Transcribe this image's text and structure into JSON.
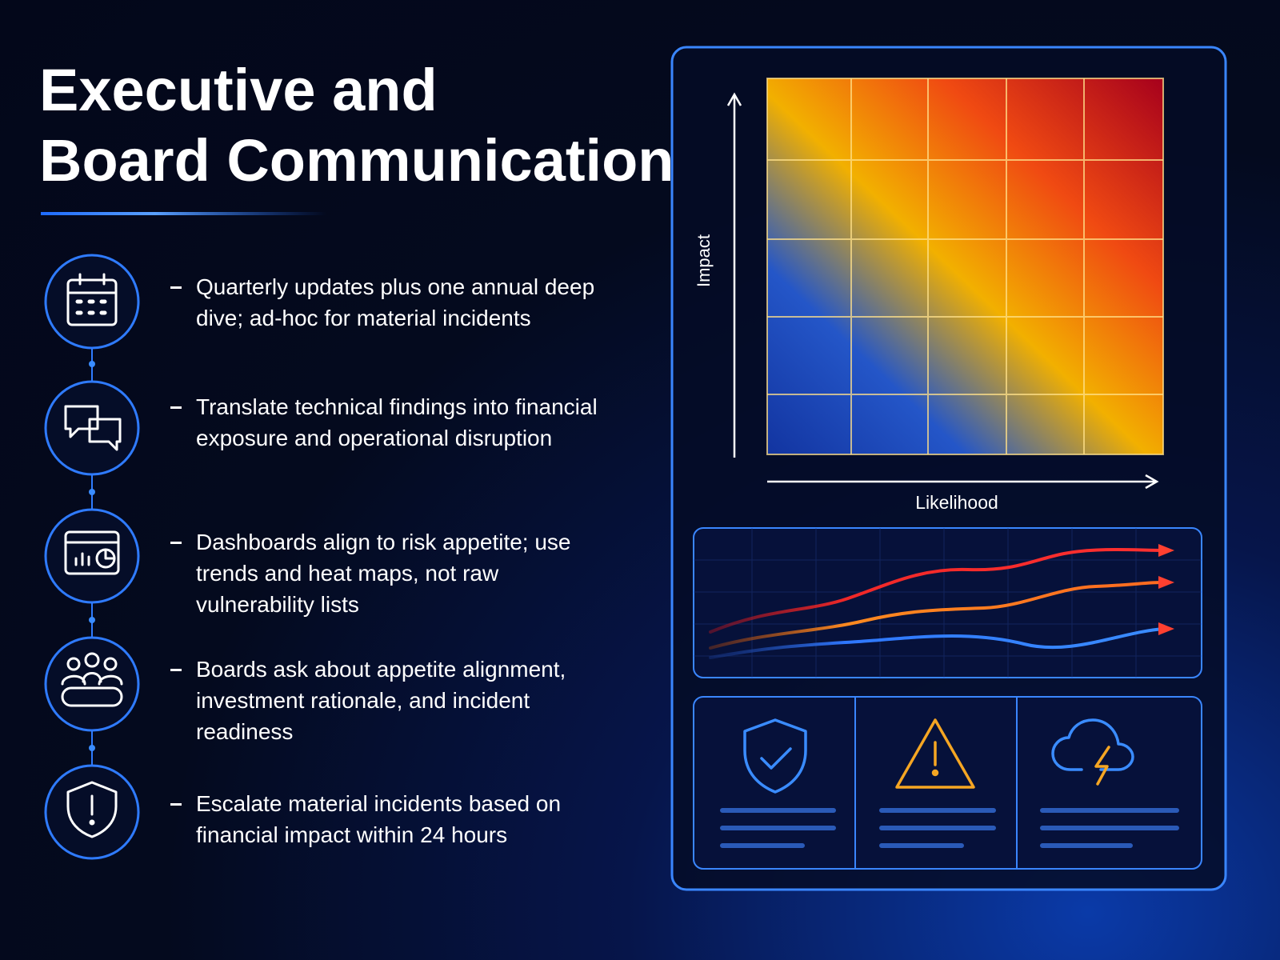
{
  "header": {
    "title": [
      "Executive and",
      "Board Communication"
    ]
  },
  "items": [
    {
      "text": "Quarterly updates plus one annual deep dive; ad-hoc for material incidents"
    },
    {
      "text": "Translate technical findings into financial exposure and operational disruption"
    },
    {
      "text": "Dashboards align to risk appetite; use trends and heat maps, not raw vulnerability lists"
    },
    {
      "text": "Boards ask about appetite alignment, investment rationale, and incident readiness"
    },
    {
      "text": "Escalate material incidents based on financial impact within 24 hours"
    }
  ],
  "heat_map": {
    "y_label": "Impact",
    "x_label": "Likelihood"
  }
}
